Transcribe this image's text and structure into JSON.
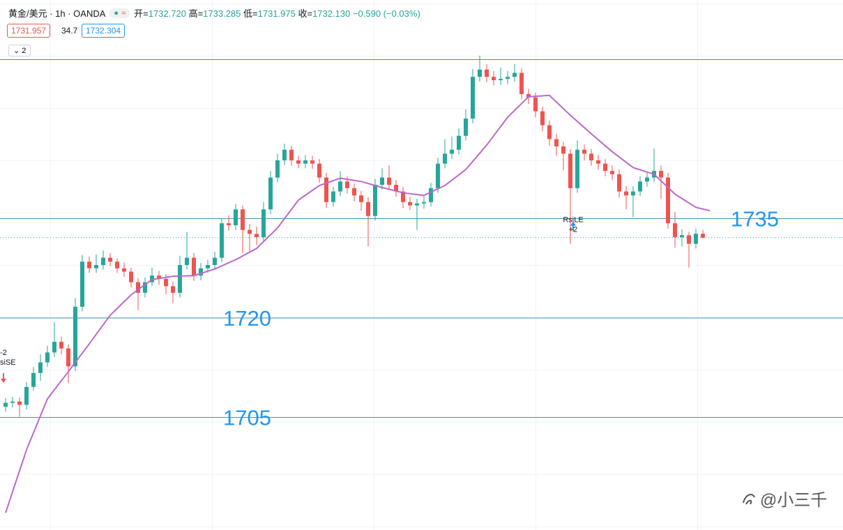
{
  "header": {
    "symbol": "黄金/美元 · 1h · OANDA",
    "ohlc": [
      {
        "label": "开=",
        "value": "1732.720"
      },
      {
        "label": "高=",
        "value": "1733.285"
      },
      {
        "label": "低=",
        "value": "1731.975"
      },
      {
        "label": "收=",
        "value": "1732.130"
      }
    ],
    "change": "−0.590 (−0.03%)",
    "bid": "1731.957",
    "spread": "34.7",
    "ask": "1732.304",
    "indicator_count": "2"
  },
  "chart_data": {
    "type": "candlestick",
    "xlim": [
      -0.8,
      120.1
    ],
    "ylim": [
      1688,
      1768
    ],
    "up_color": "#26a69a",
    "down_color": "#ef5350",
    "ma_color": "#ba68c8",
    "hline_color": "#3f8fb5",
    "open": [
      1706.6,
      1707.2,
      1707.4,
      1706.9,
      1709.6,
      1711.7,
      1713.3,
      1714.8,
      1716.4,
      1715.4,
      1712.7,
      1721.7,
      1728.5,
      1727.5,
      1728.0,
      1729.1,
      1728.5,
      1727.5,
      1727.0,
      1725.4,
      1723.8,
      1725.4,
      1726.4,
      1725.9,
      1724.8,
      1723.8,
      1728.0,
      1729.1,
      1726.4,
      1727.5,
      1728.0,
      1729.1,
      1734.3,
      1734.0,
      1736.4,
      1733.3,
      1732.7,
      1732.2,
      1736.4,
      1741.2,
      1743.8,
      1745.4,
      1743.8,
      1743.3,
      1743.8,
      1743.3,
      1741.2,
      1737.5,
      1739.1,
      1740.6,
      1739.6,
      1738.5,
      1737.5,
      1735.4,
      1740.1,
      1741.2,
      1740.1,
      1739.1,
      1737.5,
      1737.0,
      1737.3,
      1737.5,
      1739.6,
      1743.3,
      1744.8,
      1745.4,
      1747.5,
      1750.1,
      1756.4,
      1757.5,
      1756.4,
      1755.9,
      1756.1,
      1756.4,
      1757.0,
      1753.8,
      1753.3,
      1751.2,
      1749.1,
      1747.0,
      1745.9,
      1744.8,
      1739.6,
      1745.4,
      1744.8,
      1743.8,
      1743.3,
      1742.2,
      1741.7,
      1739.1,
      1738.5,
      1739.1,
      1740.6,
      1741.2,
      1742.2,
      1741.2,
      1734.3,
      1732.2,
      1732.5,
      1731.2,
      1732.72
    ],
    "high": [
      1707.9,
      1708.1,
      1708.0,
      1710.3,
      1712.6,
      1714.5,
      1715.8,
      1719.4,
      1717.2,
      1716.0,
      1723.0,
      1729.5,
      1729.3,
      1729.6,
      1730.2,
      1729.8,
      1729.0,
      1728.4,
      1727.6,
      1726.0,
      1726.1,
      1727.6,
      1727.1,
      1726.6,
      1725.5,
      1729.4,
      1733.0,
      1729.8,
      1728.3,
      1728.8,
      1730.0,
      1735.1,
      1735.5,
      1737.2,
      1737.0,
      1734.2,
      1733.8,
      1737.5,
      1742.2,
      1744.8,
      1746.3,
      1746.0,
      1744.5,
      1744.6,
      1744.5,
      1744.0,
      1741.9,
      1739.8,
      1742.2,
      1741.4,
      1740.3,
      1739.2,
      1738.2,
      1741.0,
      1742.6,
      1743.0,
      1740.8,
      1739.8,
      1738.3,
      1738.0,
      1738.4,
      1740.4,
      1744.2,
      1747.0,
      1747.4,
      1748.6,
      1751.5,
      1757.6,
      1759.6,
      1758.3,
      1757.3,
      1757.8,
      1757.3,
      1758.3,
      1757.7,
      1754.6,
      1754.0,
      1751.9,
      1749.8,
      1747.8,
      1746.6,
      1745.5,
      1746.8,
      1746.2,
      1745.5,
      1744.6,
      1744.0,
      1743.0,
      1742.4,
      1739.9,
      1739.9,
      1741.4,
      1742.0,
      1745.6,
      1743.0,
      1741.9,
      1736.0,
      1733.4,
      1733.0,
      1733.5,
      1733.285
    ],
    "low": [
      1705.9,
      1706.5,
      1705.1,
      1706.2,
      1709.0,
      1710.5,
      1712.6,
      1714.1,
      1714.5,
      1710.2,
      1712.0,
      1721.0,
      1726.8,
      1726.8,
      1727.3,
      1727.8,
      1726.8,
      1726.2,
      1724.6,
      1721.2,
      1723.1,
      1724.8,
      1725.0,
      1723.6,
      1722.2,
      1723.1,
      1727.3,
      1725.6,
      1725.7,
      1726.8,
      1727.3,
      1728.4,
      1733.2,
      1733.3,
      1729.8,
      1729.9,
      1731.0,
      1731.5,
      1735.7,
      1740.5,
      1743.1,
      1743.0,
      1742.6,
      1742.6,
      1742.5,
      1740.4,
      1736.6,
      1736.8,
      1738.4,
      1738.8,
      1737.6,
      1736.2,
      1730.8,
      1734.7,
      1739.4,
      1739.4,
      1738.3,
      1736.6,
      1736.3,
      1733.3,
      1736.5,
      1736.8,
      1738.9,
      1742.6,
      1744.0,
      1744.7,
      1746.8,
      1749.4,
      1755.7,
      1755.6,
      1755.1,
      1755.2,
      1755.3,
      1755.7,
      1753.0,
      1752.3,
      1750.3,
      1748.2,
      1746.0,
      1744.5,
      1742.3,
      1731.2,
      1738.9,
      1743.8,
      1743.0,
      1742.4,
      1741.4,
      1740.8,
      1738.2,
      1736.4,
      1735.2,
      1738.4,
      1739.8,
      1740.5,
      1738.0,
      1733.5,
      1730.6,
      1730.8,
      1727.6,
      1730.5,
      1731.975
    ],
    "close": [
      1707.2,
      1707.4,
      1706.9,
      1709.6,
      1711.7,
      1713.3,
      1714.8,
      1716.4,
      1715.4,
      1712.7,
      1721.7,
      1728.5,
      1727.5,
      1728.0,
      1729.1,
      1728.5,
      1727.5,
      1727.0,
      1725.4,
      1723.8,
      1725.4,
      1726.4,
      1725.9,
      1724.8,
      1723.8,
      1728.0,
      1729.1,
      1726.4,
      1727.5,
      1728.0,
      1729.1,
      1734.3,
      1734.0,
      1736.4,
      1733.3,
      1732.7,
      1732.2,
      1736.4,
      1741.2,
      1743.8,
      1745.4,
      1743.8,
      1743.3,
      1743.8,
      1743.3,
      1741.2,
      1737.5,
      1739.1,
      1740.6,
      1739.6,
      1738.5,
      1737.5,
      1735.4,
      1740.1,
      1741.2,
      1740.1,
      1739.1,
      1737.5,
      1737.0,
      1737.3,
      1737.5,
      1739.6,
      1743.3,
      1744.8,
      1745.4,
      1747.5,
      1750.1,
      1756.4,
      1757.5,
      1756.4,
      1755.9,
      1756.1,
      1756.4,
      1757.0,
      1753.8,
      1753.3,
      1751.2,
      1749.1,
      1747.0,
      1745.9,
      1744.8,
      1739.6,
      1745.4,
      1744.8,
      1743.8,
      1743.3,
      1742.2,
      1741.7,
      1739.1,
      1738.5,
      1739.1,
      1740.6,
      1741.2,
      1742.2,
      1741.2,
      1734.3,
      1732.2,
      1732.5,
      1731.2,
      1732.72,
      1732.13
    ],
    "ma": {
      "x": [
        0,
        3,
        6,
        9,
        12,
        15,
        18,
        21,
        24,
        27,
        30,
        33,
        36,
        39,
        42,
        45,
        48,
        51,
        54,
        57,
        60,
        63,
        66,
        69,
        72,
        75,
        78,
        81,
        84,
        87,
        90,
        93,
        96,
        99,
        101
      ],
      "values": [
        1690.6,
        1700.1,
        1707.8,
        1711.9,
        1716.1,
        1720.4,
        1723.5,
        1725.8,
        1726.3,
        1726.4,
        1727.4,
        1728.8,
        1730.5,
        1733.6,
        1737.8,
        1740.0,
        1741.1,
        1740.6,
        1739.7,
        1738.9,
        1738.5,
        1740.0,
        1742.4,
        1746.1,
        1750.3,
        1753.4,
        1753.6,
        1750.6,
        1747.8,
        1745.1,
        1742.7,
        1741.7,
        1738.7,
        1736.7,
        1736.2
      ]
    },
    "hlines": [
      {
        "value": 1759
      },
      {
        "value": 1735,
        "label": "1735"
      },
      {
        "value": 1720,
        "label": "1720"
      },
      {
        "value": 1705,
        "label": "1705"
      }
    ],
    "signals": [
      {
        "x": 0,
        "direction": "down",
        "lines": [
          "-2",
          "siSE"
        ]
      },
      {
        "x": 81,
        "direction": "up",
        "lines": [
          "RsiLE",
          "+2"
        ]
      }
    ]
  },
  "watermark": "@小三千"
}
